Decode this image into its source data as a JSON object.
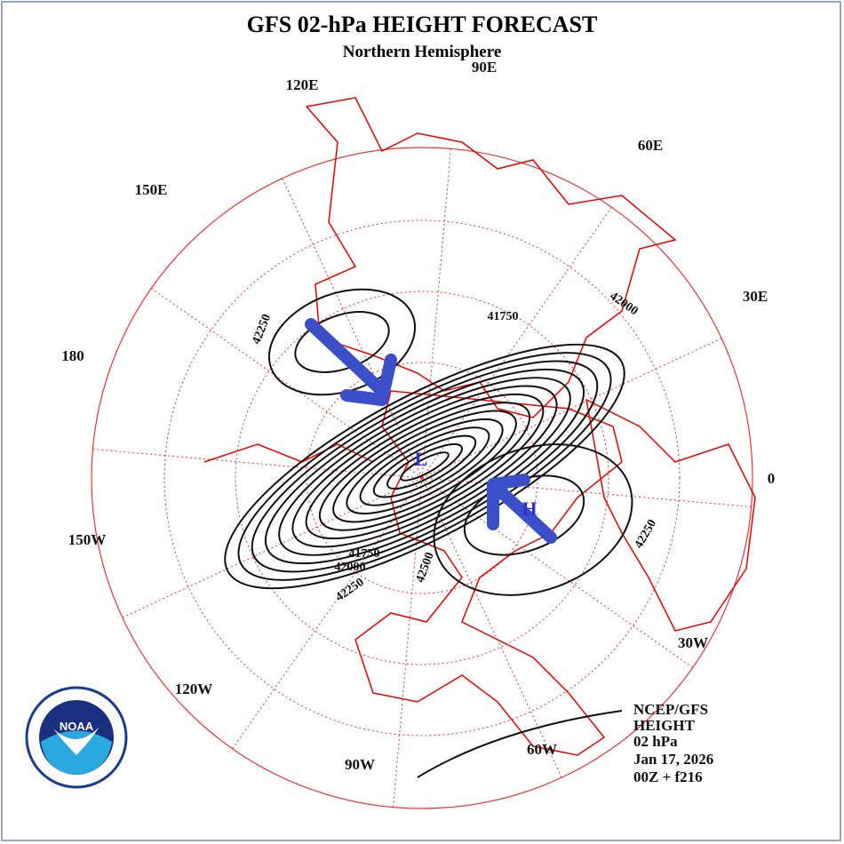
{
  "header": {
    "title": "GFS 02-hPa HEIGHT FORECAST",
    "subtitle": "Northern Hemisphere"
  },
  "map": {
    "longitude_labels": [
      "120E",
      "90E",
      "60E",
      "150E",
      "30E",
      "180",
      "0",
      "150W",
      "30W",
      "120W",
      "90W",
      "60W"
    ],
    "contour_labels": [
      "42250",
      "41750",
      "42000",
      "42250",
      "41750",
      "42000",
      "42250",
      "42500"
    ],
    "pressure_centers": [
      "L",
      "H"
    ]
  },
  "info": {
    "lines": [
      "NCEP/GFS",
      "HEIGHT",
      "02 hPa",
      "Jan 17, 2026",
      "00Z + f216"
    ]
  },
  "logo": {
    "text": "NOAA"
  }
}
